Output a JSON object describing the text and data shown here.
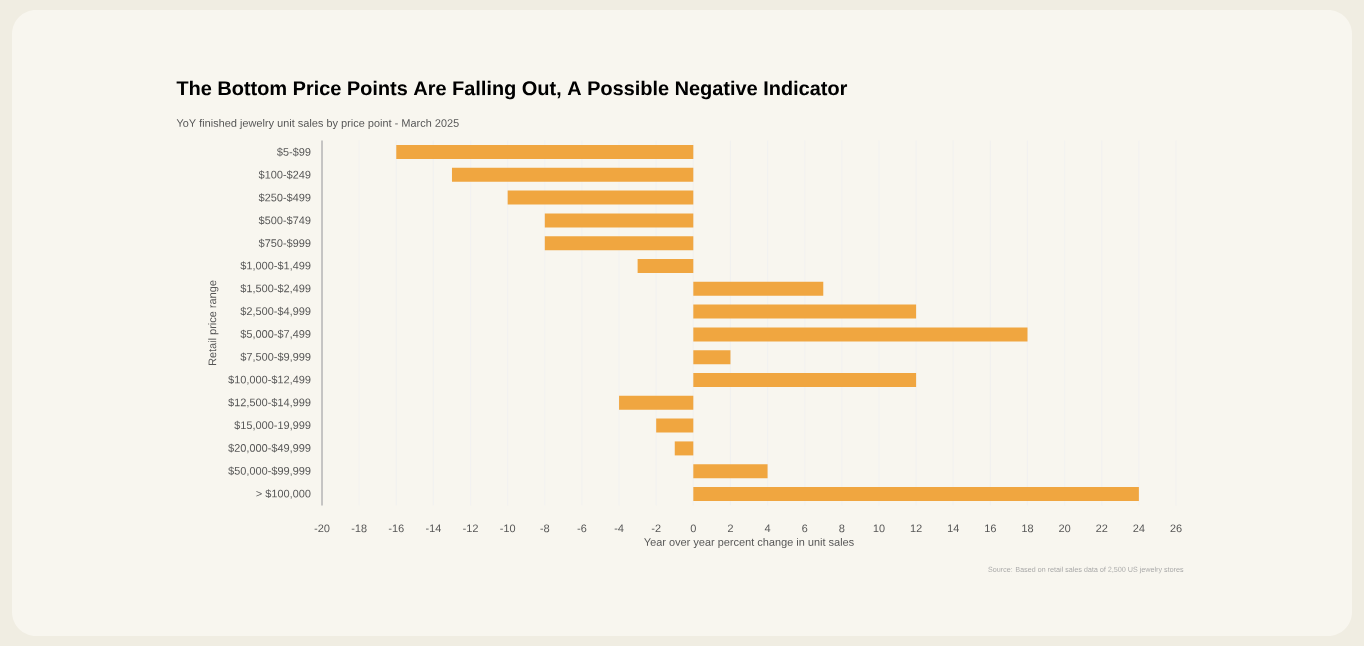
{
  "chart_data": {
    "type": "bar",
    "orientation": "horizontal",
    "title": "The Bottom Price Points Are Falling Out, A Possible Negative Indicator",
    "subtitle": "YoY finished jewelry unit sales by price point - March 2025",
    "xlabel": "Year over year percent change in unit sales",
    "ylabel": "Retail price range",
    "annotations": [
      "Source: Based on retail sales data of 2,500 US jewelry stores"
    ],
    "categories": [
      "$5-$99",
      "$100-$249",
      "$250-$499",
      "$500-$749",
      "$750-$999",
      "$1,000-$1,499",
      "$1,500-$2,499",
      "$2,500-$4,999",
      "$5,000-$7,499",
      "$7,500-$9,999",
      "$10,000-$12,499",
      "$12,500-$14,999",
      "$15,000-19,999",
      "$20,000-$49,999",
      "$50,000-$99,999",
      "> $100,000"
    ],
    "values": [
      -16,
      -13,
      -10,
      -8,
      -8,
      -3,
      7,
      12,
      18,
      2,
      12,
      -4,
      -2,
      -1,
      4,
      24
    ],
    "color": "#f0a640",
    "xlim": [
      -20,
      26
    ],
    "xticks": [
      -20,
      -18,
      -16,
      -14,
      -12,
      -10,
      -8,
      -6,
      -4,
      -2,
      0,
      2,
      4,
      6,
      8,
      10,
      12,
      14,
      16,
      18,
      20,
      22,
      24,
      26
    ],
    "grid": "x"
  }
}
